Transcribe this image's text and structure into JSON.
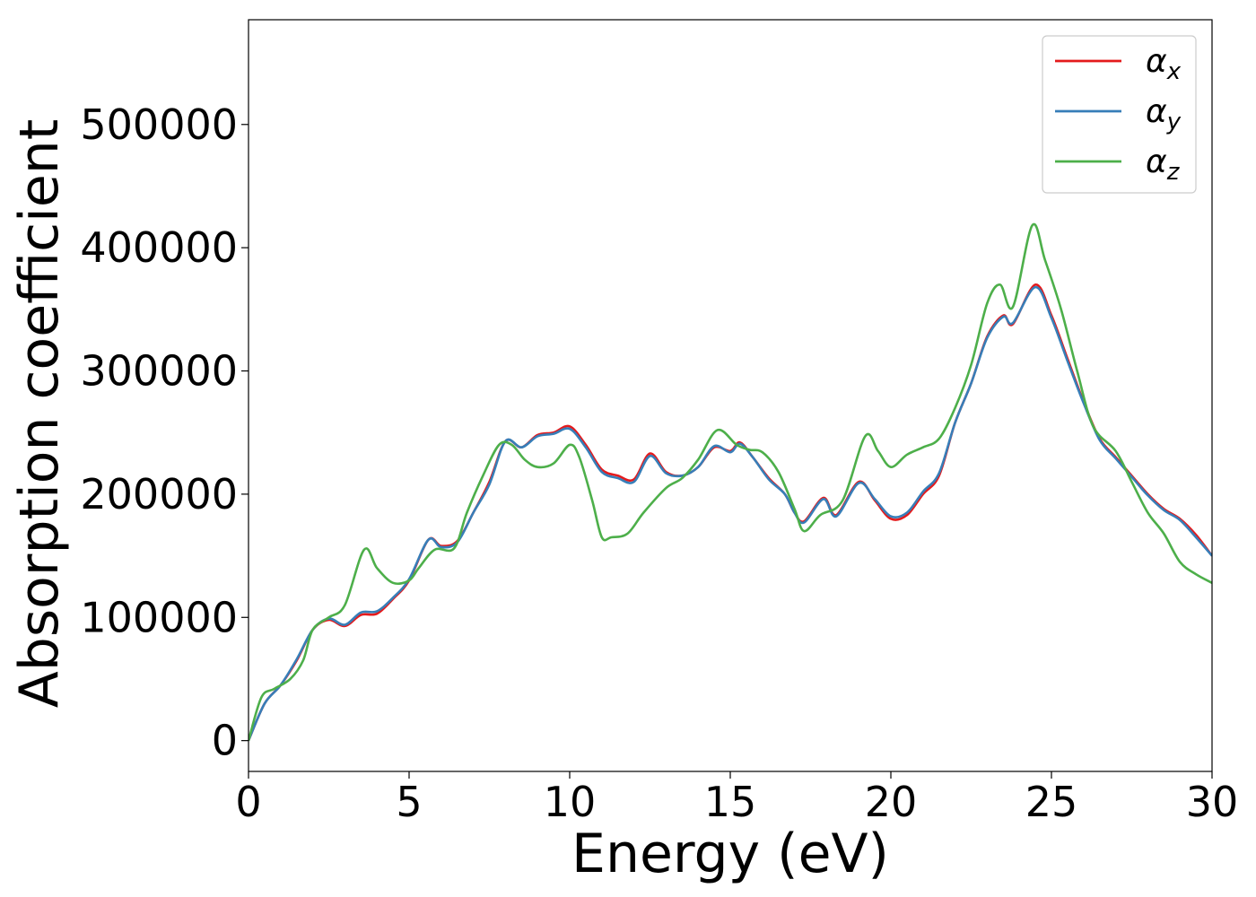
{
  "chart_data": {
    "type": "line",
    "title": "",
    "xlabel": "Energy (eV)",
    "ylabel": "Absorption coefficient",
    "xlim": [
      0,
      30
    ],
    "ylim": [
      -25000,
      585000
    ],
    "xticks": [
      0,
      5,
      10,
      15,
      20,
      25,
      30
    ],
    "yticks": [
      0,
      100000,
      200000,
      300000,
      400000,
      500000
    ],
    "grid": false,
    "legend": "top-right",
    "series": [
      {
        "name": "α",
        "subscript": "x",
        "color": "#e41a1c",
        "points": [
          [
            0,
            0
          ],
          [
            0.5,
            30000
          ],
          [
            1.0,
            45000
          ],
          [
            1.5,
            65000
          ],
          [
            2.0,
            90000
          ],
          [
            2.5,
            98000
          ],
          [
            3.0,
            93000
          ],
          [
            3.5,
            102000
          ],
          [
            4.0,
            103000
          ],
          [
            4.5,
            115000
          ],
          [
            5.0,
            130000
          ],
          [
            5.6,
            163000
          ],
          [
            6.0,
            158000
          ],
          [
            6.5,
            162000
          ],
          [
            7.0,
            185000
          ],
          [
            7.5,
            210000
          ],
          [
            8.0,
            243000
          ],
          [
            8.5,
            238000
          ],
          [
            9.0,
            248000
          ],
          [
            9.5,
            250000
          ],
          [
            10.0,
            255000
          ],
          [
            10.5,
            240000
          ],
          [
            11.0,
            220000
          ],
          [
            11.5,
            215000
          ],
          [
            12.0,
            212000
          ],
          [
            12.5,
            233000
          ],
          [
            13.0,
            218000
          ],
          [
            13.5,
            215000
          ],
          [
            14.0,
            222000
          ],
          [
            14.5,
            238000
          ],
          [
            15.0,
            235000
          ],
          [
            15.3,
            242000
          ],
          [
            15.7,
            230000
          ],
          [
            16.2,
            213000
          ],
          [
            16.7,
            200000
          ],
          [
            17.0,
            185000
          ],
          [
            17.3,
            178000
          ],
          [
            17.9,
            197000
          ],
          [
            18.3,
            183000
          ],
          [
            19.0,
            210000
          ],
          [
            19.5,
            195000
          ],
          [
            20.0,
            180000
          ],
          [
            20.5,
            183000
          ],
          [
            21.0,
            200000
          ],
          [
            21.5,
            215000
          ],
          [
            22.0,
            258000
          ],
          [
            22.5,
            290000
          ],
          [
            23.0,
            328000
          ],
          [
            23.5,
            345000
          ],
          [
            23.8,
            338000
          ],
          [
            24.5,
            370000
          ],
          [
            25.0,
            345000
          ],
          [
            25.5,
            310000
          ],
          [
            26.0,
            275000
          ],
          [
            26.5,
            245000
          ],
          [
            27.0,
            230000
          ],
          [
            27.5,
            215000
          ],
          [
            28.0,
            200000
          ],
          [
            28.5,
            188000
          ],
          [
            29.0,
            180000
          ],
          [
            29.5,
            167000
          ],
          [
            30.0,
            150000
          ]
        ]
      },
      {
        "name": "α",
        "subscript": "y",
        "color": "#377eb8",
        "points": [
          [
            0,
            0
          ],
          [
            0.5,
            30000
          ],
          [
            1.0,
            45000
          ],
          [
            1.5,
            66000
          ],
          [
            2.0,
            90000
          ],
          [
            2.5,
            99000
          ],
          [
            3.0,
            94000
          ],
          [
            3.5,
            104000
          ],
          [
            4.0,
            105000
          ],
          [
            4.5,
            116000
          ],
          [
            5.0,
            131000
          ],
          [
            5.6,
            163000
          ],
          [
            6.0,
            157000
          ],
          [
            6.5,
            161000
          ],
          [
            7.0,
            185000
          ],
          [
            7.5,
            208000
          ],
          [
            8.0,
            243000
          ],
          [
            8.5,
            238000
          ],
          [
            9.0,
            247000
          ],
          [
            9.5,
            249000
          ],
          [
            10.0,
            253000
          ],
          [
            10.5,
            238000
          ],
          [
            11.0,
            218000
          ],
          [
            11.5,
            213000
          ],
          [
            12.0,
            210000
          ],
          [
            12.5,
            231000
          ],
          [
            13.0,
            217000
          ],
          [
            13.5,
            215000
          ],
          [
            14.0,
            222000
          ],
          [
            14.5,
            239000
          ],
          [
            15.0,
            234000
          ],
          [
            15.3,
            241000
          ],
          [
            15.7,
            230000
          ],
          [
            16.2,
            212000
          ],
          [
            16.7,
            200000
          ],
          [
            17.0,
            185000
          ],
          [
            17.3,
            177000
          ],
          [
            17.9,
            196000
          ],
          [
            18.3,
            182000
          ],
          [
            19.0,
            209000
          ],
          [
            19.5,
            196000
          ],
          [
            20.0,
            182000
          ],
          [
            20.5,
            185000
          ],
          [
            21.0,
            202000
          ],
          [
            21.5,
            217000
          ],
          [
            22.0,
            258000
          ],
          [
            22.5,
            290000
          ],
          [
            23.0,
            327000
          ],
          [
            23.5,
            344000
          ],
          [
            23.8,
            339000
          ],
          [
            24.5,
            368000
          ],
          [
            25.0,
            343000
          ],
          [
            25.5,
            308000
          ],
          [
            26.0,
            274000
          ],
          [
            26.5,
            244000
          ],
          [
            27.0,
            229000
          ],
          [
            27.5,
            214000
          ],
          [
            28.0,
            199000
          ],
          [
            28.5,
            187000
          ],
          [
            29.0,
            179000
          ],
          [
            29.5,
            165000
          ],
          [
            30.0,
            150000
          ]
        ]
      },
      {
        "name": "α",
        "subscript": "z",
        "color": "#4daf4a",
        "points": [
          [
            0,
            0
          ],
          [
            0.4,
            35000
          ],
          [
            0.8,
            42000
          ],
          [
            1.3,
            50000
          ],
          [
            1.7,
            65000
          ],
          [
            2.0,
            90000
          ],
          [
            2.5,
            100000
          ],
          [
            3.0,
            110000
          ],
          [
            3.6,
            155000
          ],
          [
            4.0,
            140000
          ],
          [
            4.5,
            128000
          ],
          [
            5.0,
            130000
          ],
          [
            5.3,
            140000
          ],
          [
            5.8,
            155000
          ],
          [
            6.4,
            156000
          ],
          [
            6.8,
            185000
          ],
          [
            7.3,
            215000
          ],
          [
            7.8,
            240000
          ],
          [
            8.2,
            240000
          ],
          [
            8.6,
            228000
          ],
          [
            9.0,
            222000
          ],
          [
            9.5,
            225000
          ],
          [
            10.0,
            240000
          ],
          [
            10.3,
            230000
          ],
          [
            10.7,
            195000
          ],
          [
            11.0,
            165000
          ],
          [
            11.3,
            165000
          ],
          [
            11.8,
            168000
          ],
          [
            12.3,
            185000
          ],
          [
            13.0,
            205000
          ],
          [
            13.5,
            213000
          ],
          [
            14.0,
            228000
          ],
          [
            14.6,
            252000
          ],
          [
            15.2,
            240000
          ],
          [
            15.6,
            236000
          ],
          [
            16.0,
            234000
          ],
          [
            16.5,
            218000
          ],
          [
            17.0,
            188000
          ],
          [
            17.3,
            170000
          ],
          [
            17.8,
            183000
          ],
          [
            18.5,
            195000
          ],
          [
            19.2,
            247000
          ],
          [
            19.6,
            235000
          ],
          [
            20.0,
            222000
          ],
          [
            20.5,
            232000
          ],
          [
            21.0,
            238000
          ],
          [
            21.5,
            245000
          ],
          [
            22.0,
            270000
          ],
          [
            22.5,
            305000
          ],
          [
            23.0,
            355000
          ],
          [
            23.4,
            370000
          ],
          [
            23.8,
            352000
          ],
          [
            24.4,
            418000
          ],
          [
            24.8,
            390000
          ],
          [
            25.3,
            350000
          ],
          [
            25.8,
            300000
          ],
          [
            26.3,
            255000
          ],
          [
            27.0,
            235000
          ],
          [
            27.5,
            210000
          ],
          [
            28.0,
            185000
          ],
          [
            28.5,
            168000
          ],
          [
            29.0,
            145000
          ],
          [
            29.5,
            135000
          ],
          [
            30.0,
            128000
          ]
        ]
      }
    ]
  }
}
